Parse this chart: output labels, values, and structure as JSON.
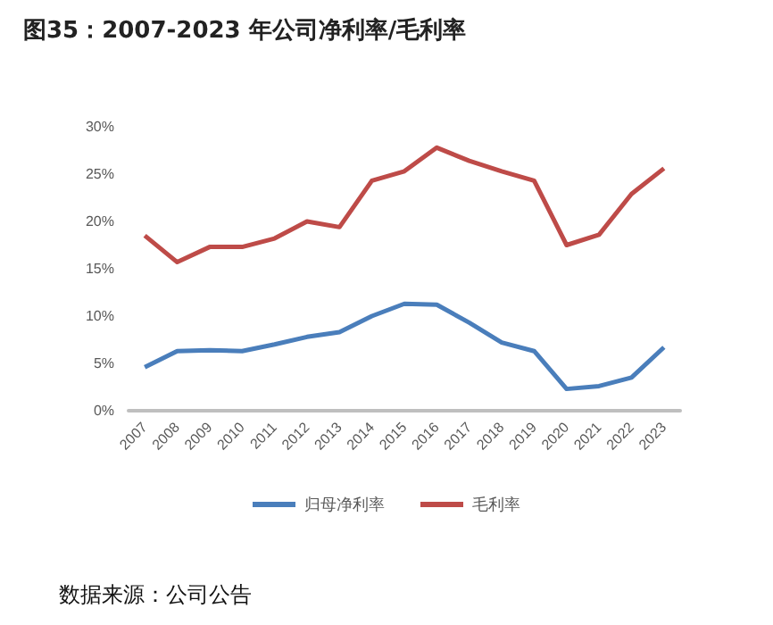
{
  "chart_data": {
    "type": "line",
    "title": "图35：2007-2023 年公司净利率/毛利率",
    "categories": [
      "2007",
      "2008",
      "2009",
      "2010",
      "2011",
      "2012",
      "2013",
      "2014",
      "2015",
      "2016",
      "2017",
      "2018",
      "2019",
      "2020",
      "2021",
      "2022",
      "2023"
    ],
    "series": [
      {
        "name": "归母净利率",
        "color": "#4a7ebb",
        "values": [
          4.6,
          6.3,
          6.4,
          6.3,
          7.0,
          7.8,
          8.3,
          10.0,
          11.3,
          11.2,
          9.3,
          7.2,
          6.3,
          2.3,
          2.6,
          3.5,
          6.7
        ]
      },
      {
        "name": "毛利率",
        "color": "#be4b48",
        "values": [
          18.5,
          15.7,
          17.3,
          17.3,
          18.2,
          20.0,
          19.4,
          24.3,
          25.3,
          27.8,
          26.4,
          25.3,
          24.3,
          17.5,
          18.6,
          22.9,
          25.6
        ]
      }
    ],
    "ylim": [
      0,
      30
    ],
    "yticks": [
      {
        "value": 0,
        "label": "0%"
      },
      {
        "value": 5,
        "label": "5%"
      },
      {
        "value": 10,
        "label": "10%"
      },
      {
        "value": 15,
        "label": "15%"
      },
      {
        "value": 20,
        "label": "20%"
      },
      {
        "value": 25,
        "label": "25%"
      },
      {
        "value": 30,
        "label": "30%"
      }
    ],
    "grid": false,
    "legend": "bottom",
    "marker": "none",
    "line_style": "solid",
    "annotations": [
      "数据来源：公司公告"
    ]
  }
}
